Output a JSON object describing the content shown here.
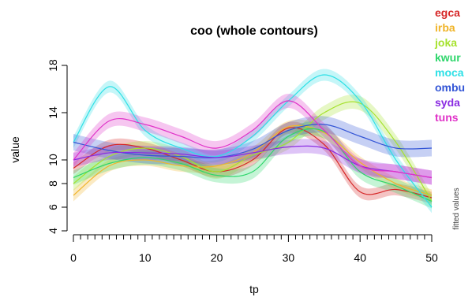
{
  "chart_data": {
    "type": "line",
    "title": "coo (whole contours)",
    "xlabel": "tp",
    "ylabel": "value",
    "side_label": "fitted values",
    "xlim": [
      0,
      50
    ],
    "ylim": [
      4,
      18
    ],
    "xticks": [
      0,
      10,
      20,
      30,
      40,
      50
    ],
    "yticks": [
      4,
      6,
      8,
      10,
      14,
      18
    ],
    "x": [
      0,
      5,
      10,
      15,
      20,
      25,
      30,
      35,
      40,
      45,
      50
    ],
    "legend_position": "top-right outside",
    "series": [
      {
        "name": "egca",
        "color": "#d62728",
        "values": [
          9.3,
          11.2,
          11.0,
          10.0,
          9.0,
          10.0,
          12.7,
          11.3,
          7.3,
          7.5,
          6.8
        ],
        "band": 0.5
      },
      {
        "name": "irba",
        "color": "#f0b429",
        "values": [
          7.0,
          9.5,
          10.0,
          9.5,
          9.5,
          10.6,
          12.8,
          12.3,
          9.8,
          8.0,
          7.0
        ],
        "band": 0.5
      },
      {
        "name": "joka",
        "color": "#a6e22e",
        "values": [
          8.0,
          10.3,
          11.0,
          10.3,
          9.0,
          10.4,
          11.5,
          14.0,
          14.8,
          11.5,
          6.5
        ],
        "band": 0.6
      },
      {
        "name": "kwur",
        "color": "#2ed66b",
        "values": [
          8.5,
          9.7,
          10.2,
          9.7,
          8.7,
          9.0,
          12.0,
          12.4,
          9.0,
          7.8,
          6.5
        ],
        "band": 0.6
      },
      {
        "name": "moca",
        "color": "#2ee0e6",
        "values": [
          11.5,
          16.2,
          12.5,
          11.0,
          10.3,
          12.0,
          15.0,
          17.2,
          15.0,
          10.0,
          6.0
        ],
        "band": 0.5
      },
      {
        "name": "ombu",
        "color": "#3355d6",
        "values": [
          11.5,
          10.8,
          10.4,
          10.3,
          10.2,
          10.9,
          12.5,
          13.0,
          12.0,
          11.0,
          11.0
        ],
        "band": 0.7
      },
      {
        "name": "syda",
        "color": "#8a2be2",
        "values": [
          10.0,
          10.6,
          10.6,
          10.5,
          10.2,
          10.6,
          11.1,
          11.0,
          9.5,
          9.0,
          8.5
        ],
        "band": 0.6
      },
      {
        "name": "tuns",
        "color": "#e032c8",
        "values": [
          10.0,
          13.3,
          13.0,
          12.0,
          11.0,
          12.5,
          15.0,
          12.5,
          9.5,
          9.0,
          8.5
        ],
        "band": 0.6
      }
    ]
  }
}
